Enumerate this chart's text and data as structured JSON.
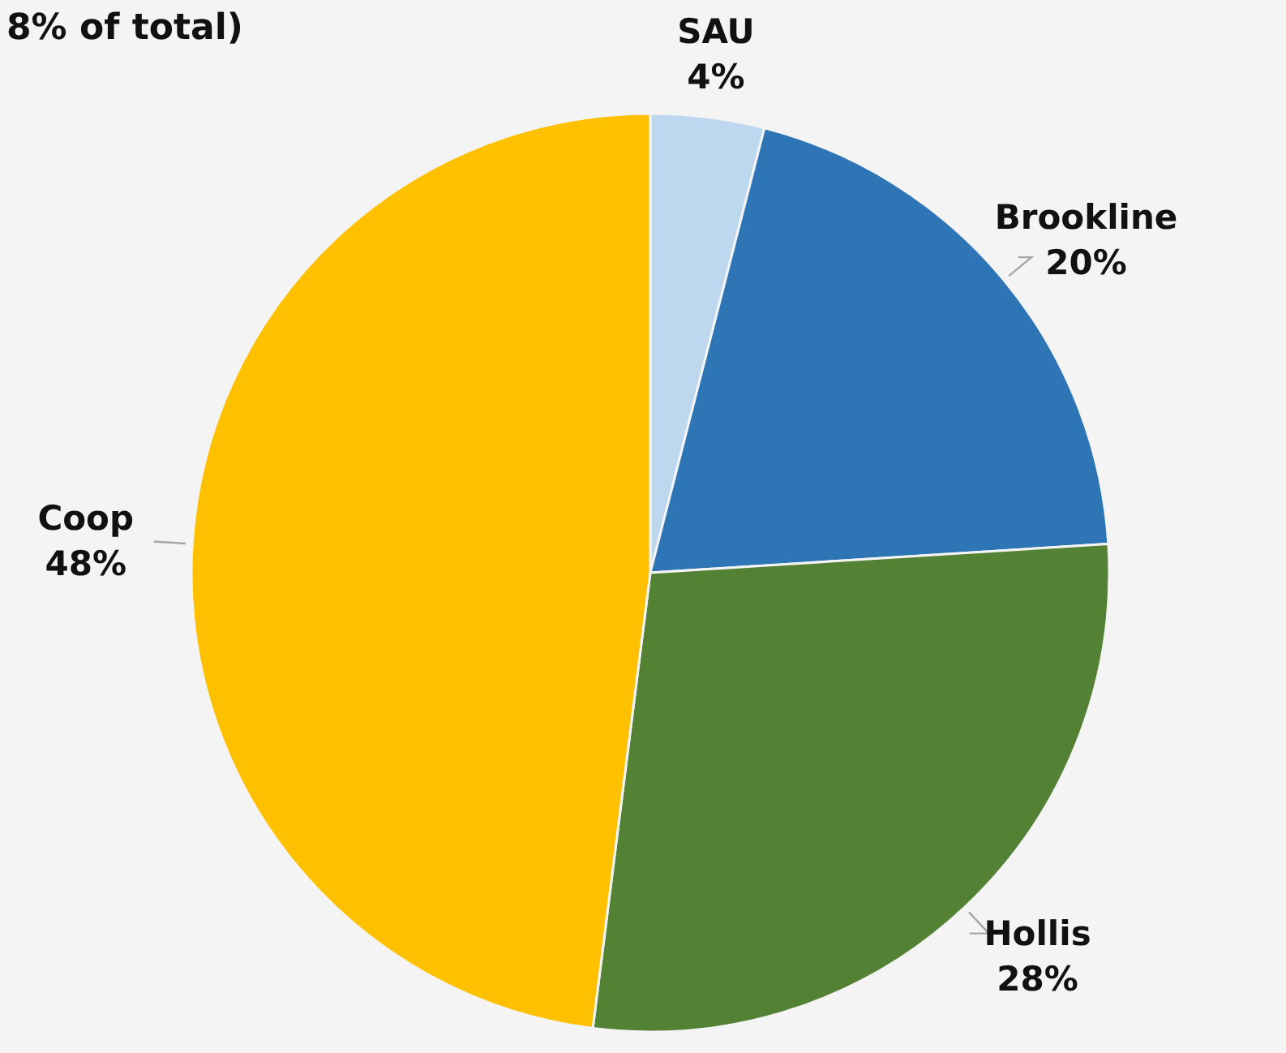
{
  "chart_data": {
    "type": "pie",
    "title": "8% of total)",
    "categories": [
      "SAU",
      "Brookline",
      "Hollis",
      "Coop"
    ],
    "values": [
      4,
      20,
      28,
      48
    ],
    "colors": [
      "#bdd7ee",
      "#2e75b6",
      "#548235",
      "#ffc000"
    ],
    "value_labels": [
      "4%",
      "20%",
      "28%",
      "48%"
    ]
  }
}
